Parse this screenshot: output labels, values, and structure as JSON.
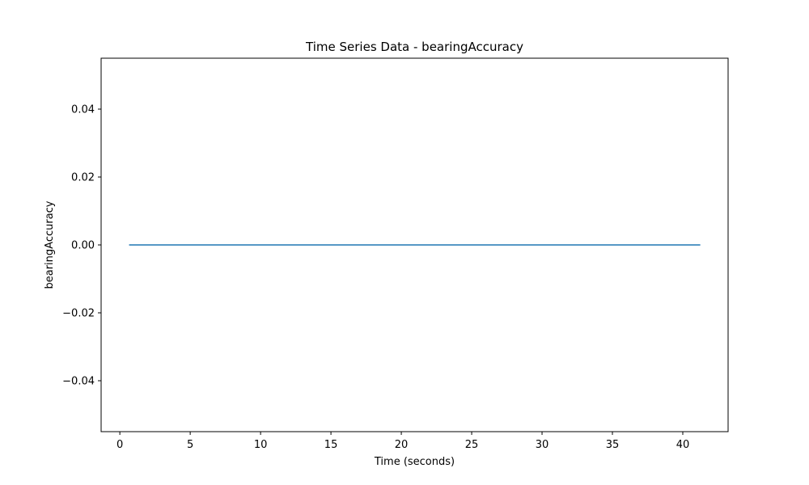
{
  "chart_data": {
    "type": "line",
    "title": "Time Series Data - bearingAccuracy",
    "xlabel": "Time (seconds)",
    "ylabel": "bearingAccuracy",
    "xlim": [
      -1.33,
      43.22
    ],
    "ylim": [
      -0.055,
      0.055
    ],
    "xticks": [
      0,
      5,
      10,
      15,
      20,
      25,
      30,
      35,
      40
    ],
    "xtick_labels": [
      "0",
      "5",
      "10",
      "15",
      "20",
      "25",
      "30",
      "35",
      "40"
    ],
    "yticks": [
      -0.04,
      -0.02,
      0.0,
      0.02,
      0.04
    ],
    "ytick_labels": [
      "−0.04",
      "−0.02",
      "0.00",
      "0.02",
      "0.04"
    ],
    "grid": false,
    "legend": "none",
    "series": [
      {
        "color": "#1f77b4",
        "x": [
          0.7,
          41.2
        ],
        "y": [
          0.0,
          0.0
        ]
      }
    ]
  }
}
